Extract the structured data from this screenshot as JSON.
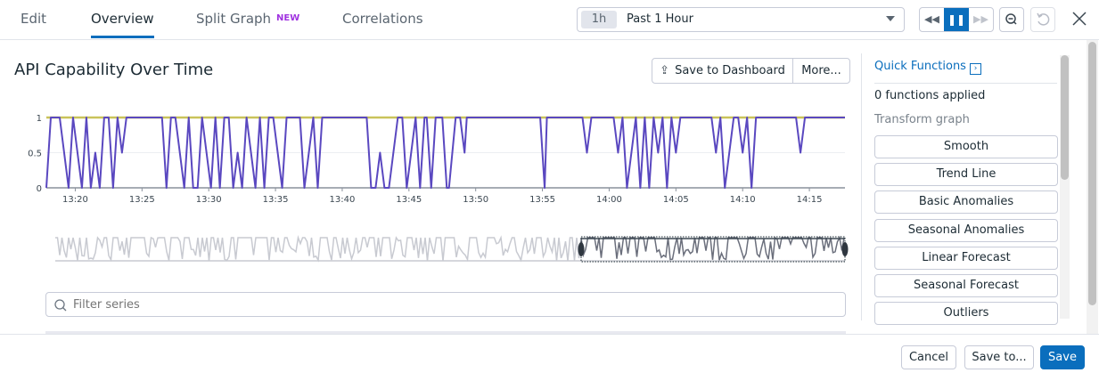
{
  "tabs": [
    {
      "label": "Edit"
    },
    {
      "label": "Overview",
      "active": true
    },
    {
      "label": "Split Graph",
      "badge": "NEW"
    },
    {
      "label": "Correlations"
    }
  ],
  "time": {
    "pill": "1h",
    "label": "Past 1 Hour"
  },
  "controls": {
    "rewind": "rewind-icon",
    "pause": "pause-icon",
    "forward": "fast-forward-icon",
    "zoom_out": "zoom-out-icon",
    "reset": "reset-icon",
    "close": "close-icon"
  },
  "title": "API Capability Over Time",
  "buttons": {
    "save_dashboard": "Save to Dashboard",
    "more": "More..."
  },
  "filter": {
    "placeholder": "Filter series",
    "value": ""
  },
  "quick": {
    "title": "Quick Functions",
    "applied": "0 functions applied",
    "section": "Transform graph",
    "items": [
      "Smooth",
      "Trend Line",
      "Basic Anomalies",
      "Seasonal Anomalies",
      "Linear Forecast",
      "Seasonal Forecast",
      "Outliers"
    ]
  },
  "footer": {
    "cancel": "Cancel",
    "save_to": "Save to...",
    "save": "Save"
  },
  "colors": {
    "accent": "#0a6ebd",
    "series_main": "#5a48c0",
    "series_flat": "#c9c35a",
    "minimap": "#c8cad1",
    "minimap_sel": "#6b6f7c"
  },
  "chart_data": {
    "type": "line",
    "ylim": [
      0,
      1
    ],
    "yticks": [
      "0",
      "0.5",
      "1"
    ],
    "xticks": [
      "13:20",
      "13:25",
      "13:30",
      "13:35",
      "13:40",
      "13:45",
      "13:50",
      "13:55",
      "14:00",
      "14:05",
      "14:10",
      "14:15"
    ],
    "xrange": [
      "13:17:50",
      "14:17:40"
    ],
    "grid": true,
    "series": [
      {
        "color": "#5a48c0",
        "points": [
          [
            "13:17:50",
            0
          ],
          [
            "13:18:10",
            1
          ],
          [
            "13:18:50",
            1
          ],
          [
            "13:19:30",
            0
          ],
          [
            "13:19:50",
            1
          ],
          [
            "13:20:30",
            0
          ],
          [
            "13:20:50",
            1
          ],
          [
            "13:21:10",
            0
          ],
          [
            "13:21:30",
            0.5
          ],
          [
            "13:21:50",
            0
          ],
          [
            "13:22:10",
            1
          ],
          [
            "13:22:30",
            1
          ],
          [
            "13:22:50",
            0
          ],
          [
            "13:23:10",
            1
          ],
          [
            "13:23:30",
            0.5
          ],
          [
            "13:23:50",
            1
          ],
          [
            "13:26:30",
            1
          ],
          [
            "13:26:50",
            0
          ],
          [
            "13:27:10",
            1
          ],
          [
            "13:27:30",
            1
          ],
          [
            "13:28:10",
            0
          ],
          [
            "13:28:30",
            1
          ],
          [
            "13:28:50",
            0
          ],
          [
            "13:29:10",
            0
          ],
          [
            "13:29:30",
            1
          ],
          [
            "13:30:10",
            0
          ],
          [
            "13:30:30",
            1
          ],
          [
            "13:30:50",
            0
          ],
          [
            "13:31:10",
            1
          ],
          [
            "13:31:30",
            1
          ],
          [
            "13:31:50",
            0
          ],
          [
            "13:32:10",
            0.5
          ],
          [
            "13:32:30",
            0
          ],
          [
            "13:32:50",
            1
          ],
          [
            "13:33:30",
            0
          ],
          [
            "13:33:50",
            1
          ],
          [
            "13:34:10",
            0
          ],
          [
            "13:34:30",
            1
          ],
          [
            "13:34:50",
            1
          ],
          [
            "13:35:30",
            0
          ],
          [
            "13:35:50",
            1
          ],
          [
            "13:36:50",
            1
          ],
          [
            "13:37:10",
            0
          ],
          [
            "13:37:50",
            1
          ],
          [
            "13:38:10",
            0
          ],
          [
            "13:38:30",
            1
          ],
          [
            "13:41:50",
            1
          ],
          [
            "13:42:10",
            0
          ],
          [
            "13:42:30",
            0
          ],
          [
            "13:42:50",
            0.5
          ],
          [
            "13:43:10",
            0
          ],
          [
            "13:43:30",
            0
          ],
          [
            "13:44:10",
            1
          ],
          [
            "13:44:30",
            1
          ],
          [
            "13:44:50",
            0
          ],
          [
            "13:45:30",
            1
          ],
          [
            "13:45:50",
            0
          ],
          [
            "13:46:10",
            1
          ],
          [
            "13:46:20",
            1
          ],
          [
            "13:46:40",
            0
          ],
          [
            "13:47:00",
            1
          ],
          [
            "13:47:30",
            1
          ],
          [
            "13:47:50",
            0
          ],
          [
            "13:48:00",
            0
          ],
          [
            "13:48:30",
            1
          ],
          [
            "13:48:50",
            1
          ],
          [
            "13:49:10",
            0.5
          ],
          [
            "13:49:20",
            1
          ],
          [
            "13:54:50",
            1
          ],
          [
            "13:55:10",
            0
          ],
          [
            "13:55:20",
            1
          ],
          [
            "13:58:00",
            1
          ],
          [
            "13:58:20",
            0.5
          ],
          [
            "13:58:40",
            1
          ],
          [
            "14:00:20",
            1
          ],
          [
            "14:00:40",
            0.5
          ],
          [
            "14:01:00",
            1
          ],
          [
            "14:01:20",
            0
          ],
          [
            "14:02:00",
            1
          ],
          [
            "14:02:20",
            0
          ],
          [
            "14:02:40",
            1
          ],
          [
            "14:03:00",
            0
          ],
          [
            "14:03:20",
            1
          ],
          [
            "14:03:40",
            0.5
          ],
          [
            "14:04:00",
            1
          ],
          [
            "14:04:20",
            0
          ],
          [
            "14:04:40",
            1
          ],
          [
            "14:05:00",
            0.5
          ],
          [
            "14:05:20",
            1
          ],
          [
            "14:07:40",
            1
          ],
          [
            "14:08:00",
            0.5
          ],
          [
            "14:08:20",
            1
          ],
          [
            "14:08:40",
            0
          ],
          [
            "14:09:20",
            1
          ],
          [
            "14:09:40",
            1
          ],
          [
            "14:10:00",
            0.5
          ],
          [
            "14:10:20",
            1
          ],
          [
            "14:10:40",
            0
          ],
          [
            "14:11:00",
            1
          ],
          [
            "14:14:00",
            1
          ],
          [
            "14:14:20",
            0.5
          ],
          [
            "14:14:40",
            1
          ],
          [
            "14:17:40",
            1
          ]
        ]
      },
      {
        "color": "#c9c35a",
        "points": [
          [
            "13:17:50",
            1
          ],
          [
            "14:17:40",
            1
          ]
        ]
      }
    ]
  }
}
